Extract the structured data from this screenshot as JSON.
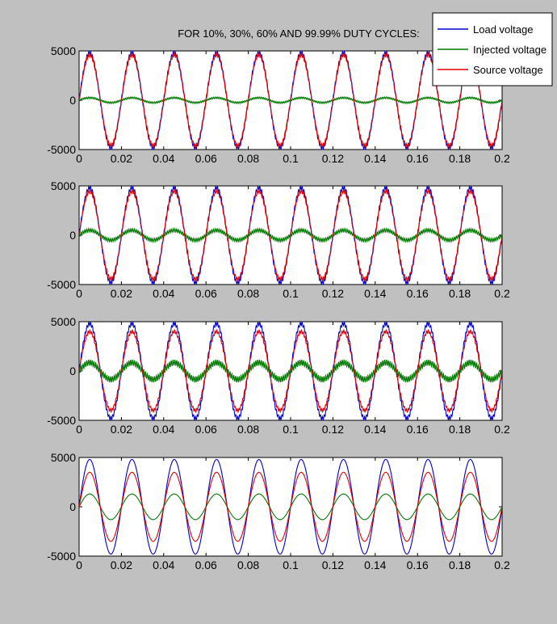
{
  "figure": {
    "title": "FOR 10%, 30%, 60% AND 99.99% DUTY CYCLES:",
    "background": "#c0c0c0",
    "axes_background": "#ffffff"
  },
  "legend": {
    "placement": "top-right",
    "entries": [
      {
        "label": "Load voltage",
        "color": "#0000c8"
      },
      {
        "label": "Injected voltage",
        "color": "#007a00"
      },
      {
        "label": "Source voltage",
        "color": "#e00000"
      }
    ]
  },
  "chart_data": [
    {
      "type": "line",
      "subplot": 1,
      "duty_cycle": "10%",
      "xlim": [
        0,
        0.2
      ],
      "ylim": [
        -5000,
        5000
      ],
      "x_ticks": [
        "0",
        "0.02",
        "0.04",
        "0.06",
        "0.08",
        "0.1",
        "0.12",
        "0.14",
        "0.16",
        "0.18",
        "0.2"
      ],
      "y_ticks": [
        "5000",
        "0",
        "-5000"
      ],
      "frequency_hz": 50,
      "series": [
        {
          "name": "Load voltage",
          "color": "#0000c8",
          "amplitude": 4800,
          "waveform": "sinusoid with switching ripple"
        },
        {
          "name": "Injected voltage",
          "color": "#007a00",
          "amplitude": 250,
          "waveform": "sinusoid with switching ripple"
        },
        {
          "name": "Source voltage",
          "color": "#e00000",
          "amplitude": 4600,
          "waveform": "sinusoid with switching ripple"
        }
      ]
    },
    {
      "type": "line",
      "subplot": 2,
      "duty_cycle": "30%",
      "xlim": [
        0,
        0.2
      ],
      "ylim": [
        -5000,
        5000
      ],
      "x_ticks": [
        "0",
        "0.02",
        "0.04",
        "0.06",
        "0.08",
        "0.1",
        "0.12",
        "0.14",
        "0.16",
        "0.18",
        "0.2"
      ],
      "y_ticks": [
        "5000",
        "0",
        "-5000"
      ],
      "frequency_hz": 50,
      "series": [
        {
          "name": "Load voltage",
          "color": "#0000c8",
          "amplitude": 4800,
          "waveform": "sinusoid with switching ripple"
        },
        {
          "name": "Injected voltage",
          "color": "#007a00",
          "amplitude": 500,
          "waveform": "sinusoid with switching ripple"
        },
        {
          "name": "Source voltage",
          "color": "#e00000",
          "amplitude": 4450,
          "waveform": "sinusoid with switching ripple"
        }
      ]
    },
    {
      "type": "line",
      "subplot": 3,
      "duty_cycle": "60%",
      "xlim": [
        0,
        0.2
      ],
      "ylim": [
        -5000,
        5000
      ],
      "x_ticks": [
        "0",
        "0.02",
        "0.04",
        "0.06",
        "0.08",
        "0.1",
        "0.12",
        "0.14",
        "0.16",
        "0.18",
        "0.2"
      ],
      "y_ticks": [
        "5000",
        "0",
        "-5000"
      ],
      "frequency_hz": 50,
      "series": [
        {
          "name": "Load voltage",
          "color": "#0000c8",
          "amplitude": 4800,
          "waveform": "sinusoid with switching ripple"
        },
        {
          "name": "Injected voltage",
          "color": "#007a00",
          "amplitude": 850,
          "waveform": "sinusoid with switching ripple"
        },
        {
          "name": "Source voltage",
          "color": "#e00000",
          "amplitude": 4000,
          "waveform": "sinusoid with switching ripple"
        }
      ]
    },
    {
      "type": "line",
      "subplot": 4,
      "duty_cycle": "99.99%",
      "xlim": [
        0,
        0.2
      ],
      "ylim": [
        -5000,
        5000
      ],
      "x_ticks": [
        "0",
        "0.02",
        "0.04",
        "0.06",
        "0.08",
        "0.1",
        "0.12",
        "0.14",
        "0.16",
        "0.18",
        "0.2"
      ],
      "y_ticks": [
        "5000",
        "0",
        "-5000"
      ],
      "frequency_hz": 50,
      "series": [
        {
          "name": "Load voltage",
          "color": "#0000c8",
          "amplitude": 4800,
          "waveform": "sinusoid"
        },
        {
          "name": "Injected voltage",
          "color": "#007a00",
          "amplitude": 1300,
          "waveform": "sinusoid"
        },
        {
          "name": "Source voltage",
          "color": "#e00000",
          "amplitude": 3500,
          "waveform": "sinusoid"
        }
      ]
    }
  ]
}
